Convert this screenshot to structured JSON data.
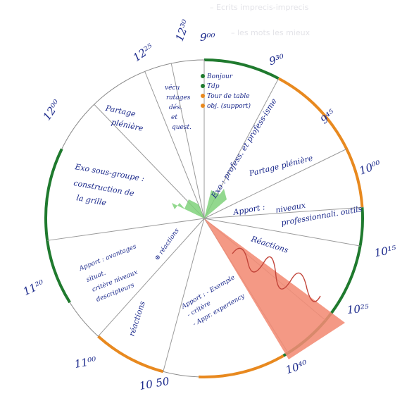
{
  "ghost_lines": [
    "– Ecrits imprecis-imprecis",
    "– les mots les mieux"
  ],
  "segments": {
    "t1": "Partage plénière",
    "t2": "vécu, ratages, dés. et quest.",
    "t3": {
      "items": [
        "Bonjour",
        "Tdp",
        "Tour de table",
        "obj. (support)"
      ],
      "dot_colors": [
        "#1f7a2e",
        "#1f7a2e",
        "#e8891f",
        "#e8891f"
      ]
    },
    "t4": "Exo : profess. et profess-isme",
    "t5": "Partage plénière",
    "t6": "Apport : niveaux professionnali. outils",
    "t7": "Réactions",
    "t8": "Apport : - Exemple - critère - Appr. experiency",
    "t9": "réactions",
    "t10": "Apport : avantages situat. critère niveaux descripteurs ⊕ réactions",
    "t11": "Exo sous-groupe : construction de la grille"
  },
  "times": {
    "t0900": "9⁰⁰",
    "t0930": "9³⁰",
    "t0945": "9⁴⁵",
    "t1000": "10⁰⁰",
    "t1015": "10¹⁵",
    "t1025": "10²⁵",
    "t1040": "10⁴⁰",
    "t1050": "10 50",
    "t1100": "11⁰⁰",
    "t1120": "11²⁰",
    "t1200": "12⁰⁰",
    "t1225": "12²⁵",
    "t1230": "12³⁰"
  },
  "colors": {
    "green": "#1f7a2e",
    "orange": "#e8891f",
    "ink": "#1c2a8c",
    "light_green": "#7fd17a",
    "salmon": "#f28b74"
  }
}
